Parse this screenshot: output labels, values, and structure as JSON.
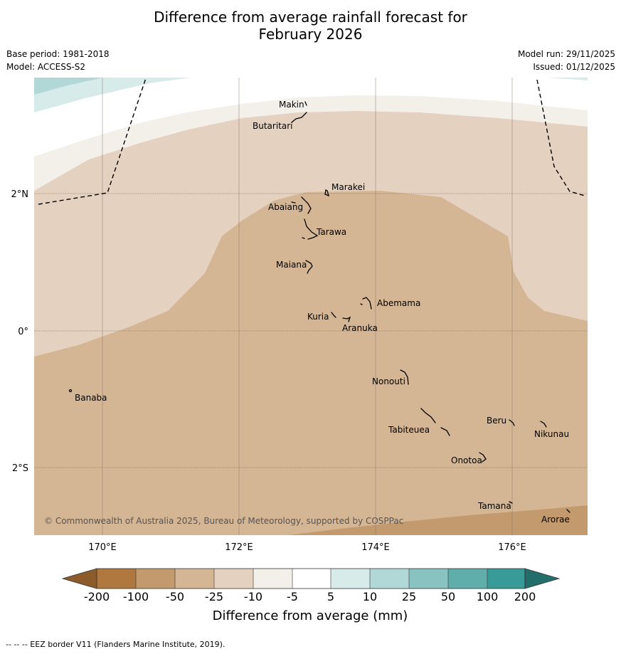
{
  "title_line1": "Difference from average rainfall forecast for",
  "title_line2": "February 2026",
  "base_period": "Base period: 1981-2018",
  "model": "Model: ACCESS-S2",
  "model_run": "Model run: 29/11/2025",
  "issued": "Issued: 01/12/2025",
  "copyright": "© Commonwealth of Australia 2025, Bureau of Meteorology, supported by COSPPac",
  "footer": "--  --  -- EEZ border V11 (Flanders Marine Institute, 2019).",
  "lat_labels": [
    "2°N",
    "0°",
    "2°S"
  ],
  "lon_labels": [
    "170°E",
    "172°E",
    "174°E",
    "176°E"
  ],
  "islands": [
    "Makin",
    "Butaritari",
    "Marakei",
    "Abaiang",
    "Tarawa",
    "Maiana",
    "Abemama",
    "Kuria",
    "Aranuka",
    "Nonouti",
    "Banaba",
    "Beru",
    "Nikunau",
    "Tabiteuea",
    "Onotoa",
    "Tamana",
    "Arorae"
  ],
  "colorbar": {
    "title": "Difference from average (mm)",
    "tick_labels": [
      "-200",
      "-100",
      "-50",
      "-25",
      "-10",
      "-5",
      "5",
      "10",
      "25",
      "50",
      "100",
      "200"
    ],
    "colors": {
      "lt_-200": "#8c5a2b",
      "-200_-100": "#b0773e",
      "-100_-50": "#c39a6e",
      "-50_-25": "#d4b594",
      "-25_-10": "#e4d1c0",
      "-10_-5": "#f3efe9",
      "-5_5": "#ffffff",
      "5_10": "#d7ebea",
      "10_25": "#b1d8d6",
      "25_50": "#89c3c1",
      "50_100": "#60aeab",
      "100_200": "#389b97",
      "gt_200": "#236e6b"
    }
  }
}
